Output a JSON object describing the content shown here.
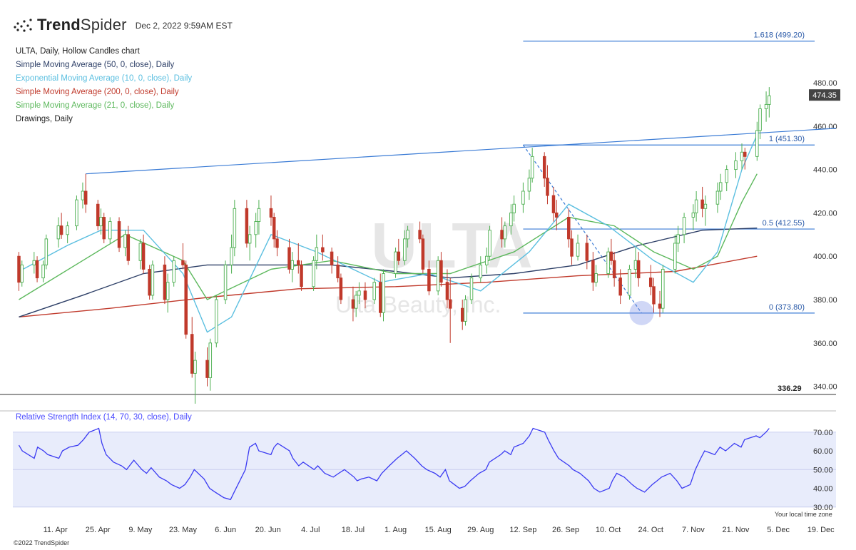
{
  "header": {
    "brand_bold": "Trend",
    "brand_thin": "Spider",
    "timestamp": "Dec 2, 2022 9:59AM EST"
  },
  "legend": [
    {
      "text": "ULTA, Daily, Hollow Candles chart",
      "color": "#222222"
    },
    {
      "text": "Simple Moving Average (50, 0, close), Daily",
      "color": "#2c3e66"
    },
    {
      "text": "Exponential Moving Average (10, 0, close), Daily",
      "color": "#5bbfe0"
    },
    {
      "text": "Simple Moving Average (200, 0, close), Daily",
      "color": "#c0392b"
    },
    {
      "text": "Simple Moving Average (21, 0, close), Daily",
      "color": "#5cb85c"
    },
    {
      "text": "Drawings, Daily",
      "color": "#222222"
    }
  ],
  "watermark": {
    "ticker": "ULTA",
    "company": "Ulta Beauty, Inc."
  },
  "footer": {
    "copyright": "©2022 TrendSpider",
    "local_time": "Your local time zone"
  },
  "chart_data": {
    "type": "candlestick",
    "symbol": "ULTA",
    "interval": "Daily",
    "ylim": [
      330,
      505
    ],
    "y_ticks": [
      340,
      360,
      380,
      400,
      420,
      440,
      460,
      480
    ],
    "x_range": [
      "2022-03-28",
      "2022-12-24"
    ],
    "x_ticks": [
      {
        "date": "2022-04-11",
        "label": "11. Apr"
      },
      {
        "date": "2022-04-25",
        "label": "25. Apr"
      },
      {
        "date": "2022-05-09",
        "label": "9. May"
      },
      {
        "date": "2022-05-23",
        "label": "23. May"
      },
      {
        "date": "2022-06-06",
        "label": "6. Jun"
      },
      {
        "date": "2022-06-20",
        "label": "20. Jun"
      },
      {
        "date": "2022-07-04",
        "label": "4. Jul"
      },
      {
        "date": "2022-07-18",
        "label": "18. Jul"
      },
      {
        "date": "2022-08-01",
        "label": "1. Aug"
      },
      {
        "date": "2022-08-15",
        "label": "15. Aug"
      },
      {
        "date": "2022-08-29",
        "label": "29. Aug"
      },
      {
        "date": "2022-09-12",
        "label": "12. Sep"
      },
      {
        "date": "2022-09-26",
        "label": "26. Sep"
      },
      {
        "date": "2022-10-10",
        "label": "10. Oct"
      },
      {
        "date": "2022-10-24",
        "label": "24. Oct"
      },
      {
        "date": "2022-11-07",
        "label": "7. Nov"
      },
      {
        "date": "2022-11-21",
        "label": "21. Nov"
      },
      {
        "date": "2022-12-05",
        "label": "5. Dec"
      },
      {
        "date": "2022-12-19",
        "label": "19. Dec"
      }
    ],
    "last_price": 474.35,
    "last_price_label": "474.35",
    "support_level": 336.29,
    "support_label": "336.29",
    "fibonacci": [
      {
        "ratio_label": "1.618 (499.20)",
        "price": 499.2
      },
      {
        "ratio_label": "1 (451.30)",
        "price": 451.3
      },
      {
        "ratio_label": "0.5 (412.55)",
        "price": 412.55
      },
      {
        "ratio_label": "0 (373.80)",
        "price": 373.8
      }
    ],
    "fib_start_date": "2022-09-12",
    "trendline": {
      "from": {
        "date": "2022-04-21",
        "price": 438
      },
      "to": {
        "date": "2022-12-24",
        "price": 459
      }
    },
    "dashed_line": {
      "from": {
        "date": "2022-09-12",
        "price": 451.3
      },
      "to": {
        "date": "2022-10-21",
        "price": 373.8
      }
    },
    "highlight_point": {
      "date": "2022-10-21",
      "price": 373.8
    },
    "candles": [
      [
        400,
        402,
        384,
        388
      ],
      [
        388,
        398,
        386,
        396
      ],
      [
        396,
        402,
        392,
        398
      ],
      [
        398,
        400,
        388,
        390
      ],
      [
        390,
        398,
        388,
        396
      ],
      [
        396,
        410,
        394,
        408
      ],
      [
        408,
        418,
        404,
        414
      ],
      [
        414,
        420,
        408,
        410
      ],
      [
        410,
        416,
        406,
        414
      ],
      [
        414,
        428,
        412,
        426
      ],
      [
        426,
        434,
        422,
        430
      ],
      [
        430,
        438,
        420,
        424
      ],
      [
        424,
        426,
        412,
        414
      ],
      [
        414,
        422,
        410,
        418
      ],
      [
        418,
        420,
        406,
        408
      ],
      [
        408,
        418,
        406,
        416
      ],
      [
        416,
        418,
        402,
        404
      ],
      [
        404,
        412,
        400,
        410
      ],
      [
        410,
        414,
        396,
        398
      ],
      [
        398,
        408,
        394,
        406
      ],
      [
        406,
        410,
        392,
        394
      ],
      [
        394,
        396,
        380,
        382
      ],
      [
        382,
        398,
        380,
        396
      ],
      [
        396,
        400,
        378,
        380
      ],
      [
        380,
        392,
        374,
        388
      ],
      [
        388,
        400,
        386,
        398
      ],
      [
        398,
        406,
        394,
        396
      ],
      [
        396,
        398,
        362,
        364
      ],
      [
        364,
        372,
        344,
        346
      ],
      [
        346,
        356,
        332,
        352
      ],
      [
        352,
        358,
        340,
        344
      ],
      [
        344,
        362,
        338,
        360
      ],
      [
        360,
        382,
        358,
        380
      ],
      [
        380,
        398,
        378,
        396
      ],
      [
        396,
        410,
        392,
        404
      ],
      [
        404,
        426,
        400,
        422
      ],
      [
        422,
        426,
        404,
        406
      ],
      [
        406,
        414,
        398,
        410
      ],
      [
        410,
        420,
        404,
        416
      ],
      [
        416,
        426,
        410,
        422
      ],
      [
        422,
        428,
        414,
        418
      ],
      [
        418,
        420,
        404,
        408
      ],
      [
        408,
        412,
        400,
        404
      ],
      [
        404,
        408,
        392,
        394
      ],
      [
        394,
        402,
        388,
        398
      ],
      [
        398,
        406,
        392,
        396
      ],
      [
        396,
        398,
        384,
        386
      ],
      [
        386,
        400,
        384,
        398
      ],
      [
        398,
        410,
        394,
        404
      ],
      [
        404,
        410,
        398,
        402
      ],
      [
        402,
        404,
        392,
        396
      ],
      [
        396,
        400,
        388,
        390
      ],
      [
        390,
        392,
        378,
        380
      ],
      [
        380,
        386,
        370,
        376
      ],
      [
        376,
        384,
        372,
        382
      ],
      [
        382,
        388,
        378,
        384
      ],
      [
        384,
        388,
        376,
        380
      ],
      [
        380,
        390,
        378,
        388
      ],
      [
        388,
        392,
        372,
        374
      ],
      [
        374,
        394,
        370,
        392
      ],
      [
        392,
        404,
        390,
        402
      ],
      [
        402,
        408,
        396,
        398
      ],
      [
        398,
        412,
        396,
        408
      ],
      [
        408,
        414,
        404,
        412
      ],
      [
        412,
        416,
        406,
        408
      ],
      [
        408,
        410,
        392,
        394
      ],
      [
        394,
        398,
        382,
        384
      ],
      [
        384,
        400,
        382,
        398
      ],
      [
        398,
        402,
        386,
        388
      ],
      [
        388,
        394,
        376,
        380
      ],
      [
        380,
        390,
        360,
        376
      ],
      [
        376,
        380,
        366,
        370
      ],
      [
        370,
        382,
        368,
        380
      ],
      [
        380,
        392,
        378,
        390
      ],
      [
        390,
        400,
        388,
        396
      ],
      [
        396,
        404,
        392,
        400
      ],
      [
        400,
        414,
        398,
        412
      ],
      [
        412,
        418,
        404,
        408
      ],
      [
        408,
        416,
        404,
        414
      ],
      [
        414,
        424,
        410,
        420
      ],
      [
        420,
        428,
        416,
        424
      ],
      [
        424,
        434,
        420,
        430
      ],
      [
        430,
        440,
        426,
        436
      ],
      [
        436,
        450,
        434,
        446
      ],
      [
        446,
        448,
        432,
        436
      ],
      [
        436,
        442,
        424,
        428
      ],
      [
        428,
        432,
        416,
        420
      ],
      [
        420,
        426,
        412,
        418
      ],
      [
        418,
        422,
        404,
        408
      ],
      [
        408,
        412,
        396,
        400
      ],
      [
        400,
        410,
        398,
        406
      ],
      [
        406,
        410,
        394,
        398
      ],
      [
        398,
        402,
        384,
        388
      ],
      [
        388,
        396,
        386,
        392
      ],
      [
        392,
        404,
        390,
        402
      ],
      [
        402,
        408,
        396,
        398
      ],
      [
        398,
        402,
        386,
        390
      ],
      [
        390,
        394,
        378,
        382
      ],
      [
        382,
        396,
        380,
        394
      ],
      [
        394,
        404,
        390,
        398
      ],
      [
        398,
        402,
        386,
        390
      ],
      [
        390,
        396,
        382,
        386
      ],
      [
        386,
        390,
        374,
        378
      ],
      [
        378,
        384,
        372,
        376
      ],
      [
        376,
        396,
        374,
        394
      ],
      [
        394,
        410,
        392,
        406
      ],
      [
        406,
        414,
        402,
        410
      ],
      [
        410,
        420,
        406,
        418
      ],
      [
        418,
        424,
        412,
        420
      ],
      [
        420,
        430,
        416,
        426
      ],
      [
        426,
        432,
        418,
        422
      ],
      [
        422,
        428,
        414,
        424
      ],
      [
        424,
        434,
        420,
        430
      ],
      [
        430,
        438,
        426,
        434
      ],
      [
        434,
        442,
        430,
        440
      ],
      [
        440,
        448,
        436,
        444
      ],
      [
        444,
        452,
        440,
        448
      ],
      [
        448,
        450,
        440,
        446
      ],
      [
        446,
        462,
        444,
        458
      ],
      [
        458,
        470,
        454,
        468
      ],
      [
        468,
        476,
        462,
        470
      ],
      [
        470,
        478,
        464,
        474
      ]
    ],
    "sma50": [
      [
        0,
        372
      ],
      [
        10,
        382
      ],
      [
        20,
        392
      ],
      [
        30,
        396
      ],
      [
        40,
        396
      ],
      [
        50,
        396
      ],
      [
        60,
        393
      ],
      [
        70,
        390
      ],
      [
        80,
        392
      ],
      [
        90,
        396
      ],
      [
        100,
        405
      ],
      [
        110,
        412
      ],
      [
        118,
        413
      ]
    ],
    "ema10": [
      [
        0,
        393
      ],
      [
        8,
        405
      ],
      [
        13,
        412
      ],
      [
        20,
        412
      ],
      [
        26,
        392
      ],
      [
        30,
        365
      ],
      [
        34,
        372
      ],
      [
        40,
        410
      ],
      [
        48,
        402
      ],
      [
        58,
        388
      ],
      [
        66,
        392
      ],
      [
        74,
        384
      ],
      [
        82,
        402
      ],
      [
        88,
        424
      ],
      [
        94,
        414
      ],
      [
        102,
        398
      ],
      [
        108,
        388
      ],
      [
        112,
        402
      ],
      [
        116,
        440
      ],
      [
        118,
        456
      ]
    ],
    "sma200": [
      [
        0,
        372
      ],
      [
        15,
        376
      ],
      [
        30,
        381
      ],
      [
        45,
        385
      ],
      [
        60,
        386
      ],
      [
        75,
        388
      ],
      [
        90,
        391
      ],
      [
        105,
        393
      ],
      [
        118,
        400
      ]
    ],
    "sma21": [
      [
        0,
        380
      ],
      [
        10,
        398
      ],
      [
        17,
        410
      ],
      [
        26,
        398
      ],
      [
        30,
        380
      ],
      [
        40,
        394
      ],
      [
        50,
        398
      ],
      [
        60,
        392
      ],
      [
        70,
        392
      ],
      [
        80,
        402
      ],
      [
        88,
        418
      ],
      [
        96,
        414
      ],
      [
        102,
        402
      ],
      [
        108,
        394
      ],
      [
        112,
        400
      ],
      [
        116,
        425
      ],
      [
        118,
        438
      ]
    ],
    "rsi": {
      "label": "Relative Strength Index (14, 70, 30, close), Daily",
      "ylim": [
        28,
        76
      ],
      "overbought": 70,
      "oversold": 30,
      "midline": 50,
      "y_ticks": [
        30,
        40,
        50,
        60,
        70
      ],
      "values": [
        63,
        60,
        56,
        62,
        60,
        58,
        56,
        60,
        62,
        63,
        66,
        70,
        72,
        64,
        58,
        54,
        52,
        50,
        55,
        50,
        48,
        51,
        46,
        44,
        42,
        40,
        42,
        46,
        50,
        45,
        40,
        38,
        35,
        34,
        38,
        50,
        62,
        64,
        60,
        58,
        62,
        64,
        60,
        56,
        52,
        54,
        50,
        52,
        48,
        46,
        48,
        50,
        46,
        44,
        45,
        46,
        44,
        48,
        52,
        56,
        58,
        60,
        56,
        52,
        50,
        48,
        46,
        50,
        44,
        40,
        41,
        44,
        48,
        50,
        54,
        58,
        60,
        58,
        62,
        64,
        68,
        72,
        70,
        66,
        60,
        56,
        52,
        50,
        48,
        44,
        40,
        38,
        40,
        44,
        48,
        46,
        42,
        40,
        38,
        42,
        44,
        46,
        48,
        44,
        40,
        42,
        50,
        56,
        60,
        58,
        62,
        60,
        64,
        62,
        66,
        68,
        67,
        70,
        72
      ],
      "tick_labels": [
        "30.00",
        "40.00",
        "50.00",
        "60.00",
        "70.00"
      ]
    }
  }
}
